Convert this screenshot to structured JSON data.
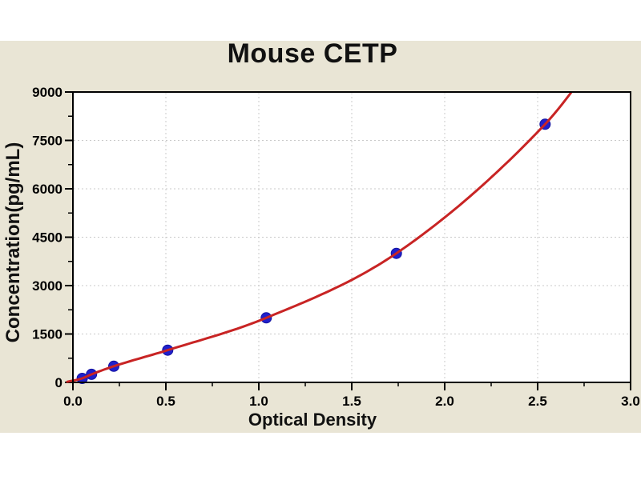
{
  "chart_data": {
    "type": "scatter",
    "title": "Mouse CETP",
    "xlabel": "Optical Density",
    "ylabel": "Concentration(pg/mL)",
    "xlim": [
      0.0,
      3.0
    ],
    "ylim": [
      0,
      9000
    ],
    "x_tick_values": [
      0.0,
      0.5,
      1.0,
      1.5,
      2.0,
      2.5,
      3.0
    ],
    "x_tick_labels": [
      "0.0",
      "0.5",
      "1.0",
      "1.5",
      "2.0",
      "2.5",
      "3.0"
    ],
    "x_minor_ticks": [
      0.25,
      0.75,
      1.25,
      1.75,
      2.25,
      2.75
    ],
    "y_tick_values": [
      0,
      1500,
      3000,
      4500,
      6000,
      7500,
      9000
    ],
    "y_tick_labels": [
      "0",
      "1500",
      "3000",
      "4500",
      "6000",
      "7500",
      "9000"
    ],
    "y_minor_ticks": [
      750,
      2250,
      3750,
      5250,
      6750,
      8250
    ],
    "grid": {
      "style": "dotted",
      "color": "#c9c9c9",
      "x_lines": [
        0.5,
        1.0,
        1.5,
        2.0,
        2.5
      ],
      "y_lines": [
        1500,
        3000,
        4500,
        6000,
        7500
      ]
    },
    "legend": null,
    "series": [
      {
        "name": "standard-points",
        "type": "scatter",
        "marker": "circle",
        "color": "#2020cc",
        "points": [
          [
            0.05,
            125
          ],
          [
            0.1,
            250
          ],
          [
            0.22,
            500
          ],
          [
            0.51,
            1000
          ],
          [
            1.04,
            2000
          ],
          [
            1.74,
            4000
          ],
          [
            2.54,
            8000
          ]
        ]
      },
      {
        "name": "fitted-curve",
        "type": "line",
        "color": "#c82424",
        "points": [
          [
            -0.03,
            20
          ],
          [
            0.05,
            125
          ],
          [
            0.1,
            250
          ],
          [
            0.22,
            500
          ],
          [
            0.51,
            1000
          ],
          [
            1.04,
            2000
          ],
          [
            1.74,
            4000
          ],
          [
            2.54,
            8000
          ],
          [
            2.75,
            9500
          ]
        ]
      }
    ]
  },
  "colors": {
    "page_background": "#ffffff",
    "figure_background": "#e9e5d5",
    "plot_background": "#ffffff",
    "axis": "#000000",
    "text": "#000000",
    "grid": "#c9c9c9",
    "curve": "#c82424",
    "marker": "#2020cc",
    "marker_edge": "#1414a0"
  }
}
